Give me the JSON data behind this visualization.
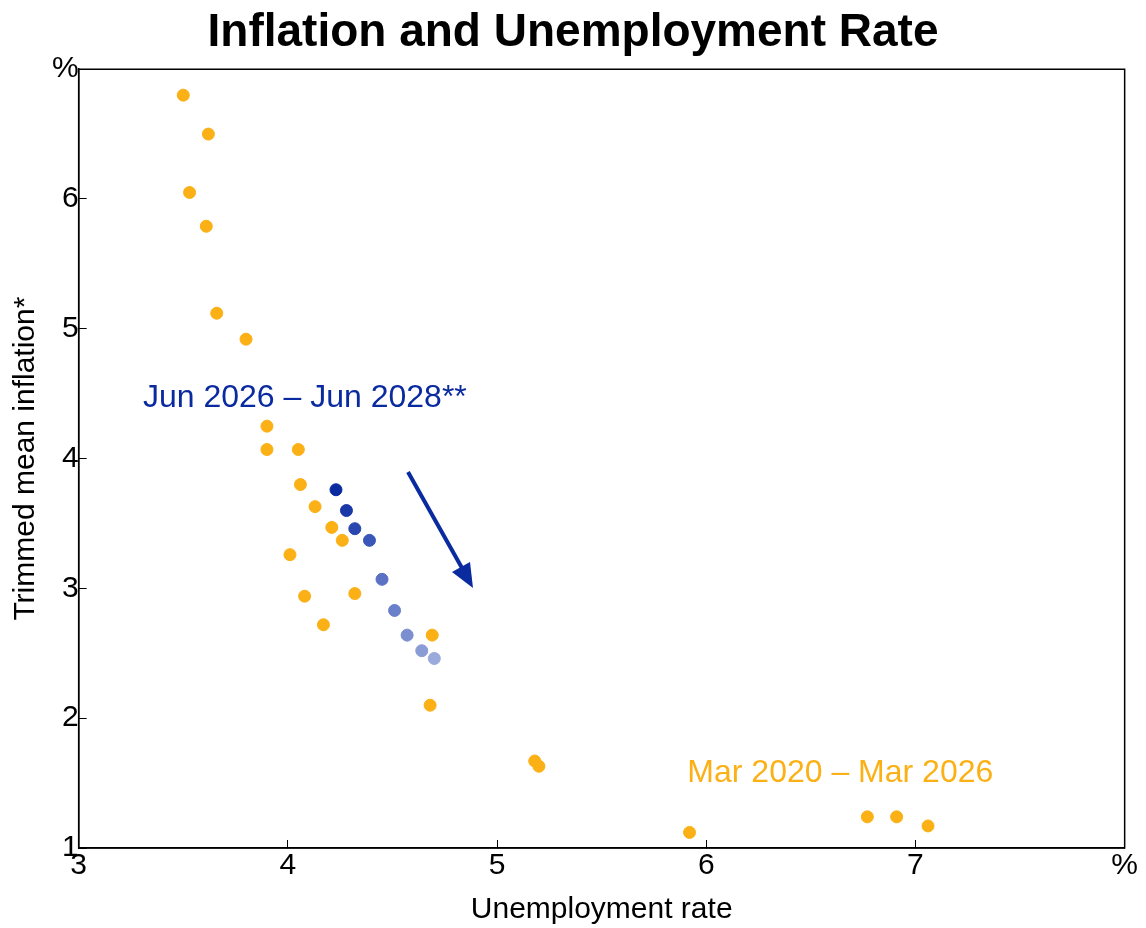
{
  "chart_data": {
    "type": "scatter",
    "title": "Inflation and Unemployment Rate",
    "xlabel": "Unemployment rate",
    "ylabel": "Trimmed mean inflation*",
    "xlim": [
      3,
      8
    ],
    "xticks": [
      3,
      4,
      5,
      6,
      7,
      {
        "value": 8,
        "label": "%"
      }
    ],
    "ylim": [
      1,
      7
    ],
    "yticks": [
      1,
      2,
      3,
      4,
      5,
      6,
      {
        "value": 7,
        "label": "%"
      }
    ],
    "grid": false,
    "legend": false,
    "marker": "circle",
    "series": [
      {
        "name": "Mar 2020 – Mar 2026",
        "color": "#fbb116",
        "x": [
          3.5,
          3.62,
          3.53,
          3.61,
          3.66,
          3.8,
          3.9,
          3.9,
          4.05,
          4.06,
          4.13,
          4.21,
          4.26,
          4.01,
          4.08,
          4.17,
          4.32,
          4.69,
          4.68,
          5.18,
          5.2,
          5.92,
          6.77,
          6.91,
          7.06
        ],
        "values": [
          6.8,
          6.5,
          6.05,
          5.79,
          5.12,
          4.92,
          4.25,
          4.07,
          4.07,
          3.8,
          3.63,
          3.47,
          3.37,
          3.26,
          2.94,
          2.72,
          2.96,
          2.64,
          2.1,
          1.67,
          1.63,
          1.12,
          1.24,
          1.24,
          1.17
        ]
      },
      {
        "name": "Jun 2026 – Jun 2028**",
        "color": "#0a2aa0",
        "colors": [
          "#0a2aa0",
          "#1a38a8",
          "#2a47b0",
          "#3a56b8",
          "#5a71c4",
          "#6a80ca",
          "#7a8ed0",
          "#8a9cd6",
          "#9aaadc"
        ],
        "x": [
          4.23,
          4.28,
          4.32,
          4.39,
          4.45,
          4.51,
          4.57,
          4.64,
          4.7
        ],
        "values": [
          3.76,
          3.6,
          3.46,
          3.37,
          3.07,
          2.83,
          2.64,
          2.52,
          2.46
        ]
      }
    ]
  }
}
